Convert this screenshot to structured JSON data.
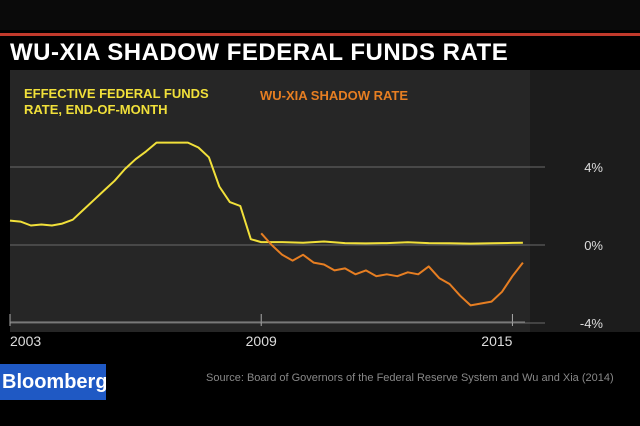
{
  "header": {
    "title": "WU-XIA SHADOW FEDERAL FUNDS RATE"
  },
  "brand": {
    "label": "Bloomberg"
  },
  "footer": {
    "source": "Source: Board of Governors of the Federal Reserve System and Wu and Xia (2014)"
  },
  "colors": {
    "effective": "#f1e03a",
    "shadow": "#e67e22",
    "accent": "#c0392b",
    "brand": "#1f59c4"
  },
  "chart_data": {
    "type": "line",
    "title": "WU-XIA SHADOW FEDERAL FUNDS RATE",
    "xlabel": "",
    "ylabel": "",
    "xlim": [
      2003,
      2015.3
    ],
    "ylim": [
      -4,
      5
    ],
    "x_ticks": [
      2003,
      2009,
      2015
    ],
    "x_tick_labels": [
      "2003",
      "2009",
      "2015"
    ],
    "y_ticks": [
      4,
      0,
      -4
    ],
    "y_tick_labels": [
      "4%",
      "0%",
      "-4%"
    ],
    "grid": "horizontal",
    "legend": "top-left",
    "series": [
      {
        "name": "EFFECTIVE FEDERAL FUNDS RATE, END-OF-MONTH",
        "color": "#f1e03a",
        "x": [
          2003.0,
          2003.25,
          2003.5,
          2003.75,
          2004.0,
          2004.25,
          2004.5,
          2004.75,
          2005.0,
          2005.25,
          2005.5,
          2005.75,
          2006.0,
          2006.25,
          2006.5,
          2006.75,
          2007.0,
          2007.25,
          2007.5,
          2007.75,
          2008.0,
          2008.25,
          2008.5,
          2008.75,
          2009.0,
          2009.5,
          2010.0,
          2010.5,
          2011.0,
          2011.5,
          2012.0,
          2012.5,
          2013.0,
          2013.5,
          2014.0,
          2014.5,
          2015.0,
          2015.25
        ],
        "values": [
          1.25,
          1.2,
          1.0,
          1.05,
          1.0,
          1.1,
          1.3,
          1.8,
          2.3,
          2.8,
          3.3,
          3.9,
          4.4,
          4.8,
          5.25,
          5.25,
          5.25,
          5.25,
          5.0,
          4.5,
          3.0,
          2.2,
          2.0,
          0.3,
          0.15,
          0.15,
          0.12,
          0.18,
          0.1,
          0.08,
          0.1,
          0.14,
          0.1,
          0.09,
          0.07,
          0.09,
          0.11,
          0.12
        ]
      },
      {
        "name": "WU-XIA SHADOW RATE",
        "color": "#e67e22",
        "x": [
          2009.0,
          2009.25,
          2009.5,
          2009.75,
          2010.0,
          2010.25,
          2010.5,
          2010.75,
          2011.0,
          2011.25,
          2011.5,
          2011.75,
          2012.0,
          2012.25,
          2012.5,
          2012.75,
          2013.0,
          2013.25,
          2013.5,
          2013.75,
          2014.0,
          2014.25,
          2014.5,
          2014.75,
          2015.0,
          2015.25
        ],
        "values": [
          0.6,
          0.0,
          -0.5,
          -0.8,
          -0.5,
          -0.9,
          -1.0,
          -1.3,
          -1.2,
          -1.5,
          -1.3,
          -1.6,
          -1.5,
          -1.6,
          -1.4,
          -1.5,
          -1.1,
          -1.7,
          -2.0,
          -2.6,
          -3.1,
          -3.0,
          -2.9,
          -2.4,
          -1.6,
          -0.9
        ]
      }
    ]
  }
}
